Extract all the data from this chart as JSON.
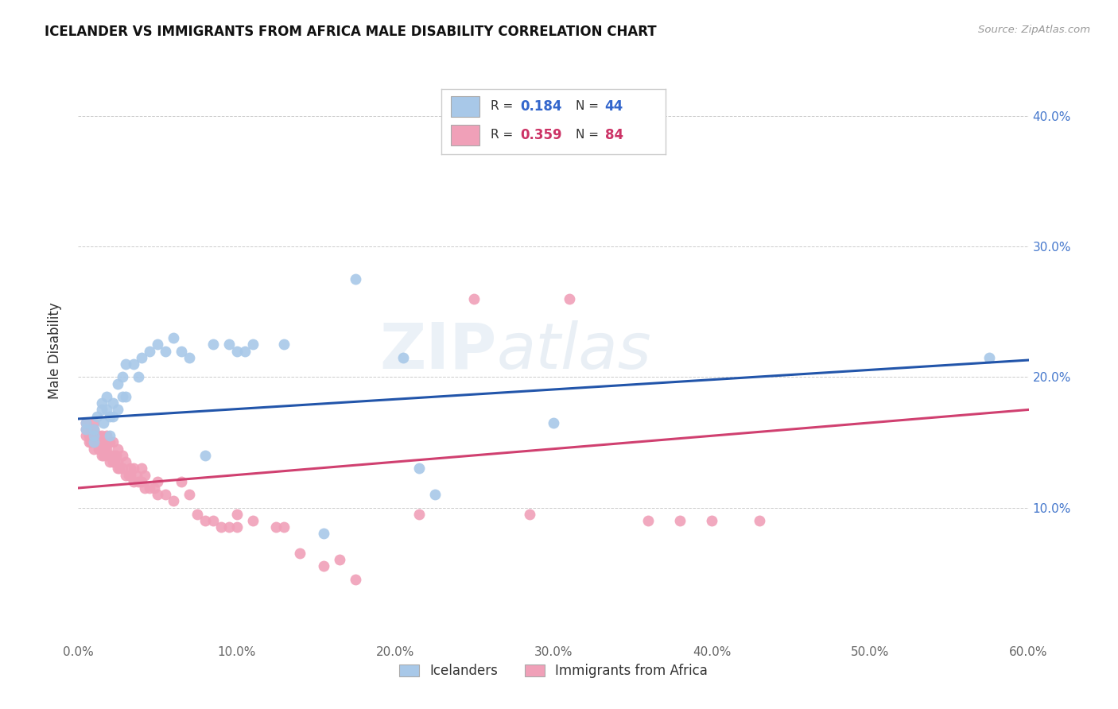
{
  "title": "ICELANDER VS IMMIGRANTS FROM AFRICA MALE DISABILITY CORRELATION CHART",
  "source": "Source: ZipAtlas.com",
  "ylabel": "Male Disability",
  "xlabel": "",
  "bg_color": "#ffffff",
  "grid_color": "#cccccc",
  "watermark_zip": "ZIP",
  "watermark_atlas": "atlas",
  "xlim": [
    0.0,
    0.6
  ],
  "ylim": [
    0.0,
    0.44
  ],
  "xticks": [
    0.0,
    0.1,
    0.2,
    0.3,
    0.4,
    0.5,
    0.6
  ],
  "yticks": [
    0.0,
    0.1,
    0.2,
    0.3,
    0.4
  ],
  "xtick_labels": [
    "0.0%",
    "10.0%",
    "20.0%",
    "30.0%",
    "40.0%",
    "50.0%",
    "60.0%"
  ],
  "ytick_labels_right": [
    "",
    "10.0%",
    "20.0%",
    "30.0%",
    "40.0%"
  ],
  "blue_color": "#a8c8e8",
  "blue_line_color": "#2255aa",
  "pink_color": "#f0a0b8",
  "pink_line_color": "#d04070",
  "blue_scatter_x": [
    0.005,
    0.005,
    0.01,
    0.01,
    0.01,
    0.012,
    0.015,
    0.015,
    0.016,
    0.018,
    0.018,
    0.02,
    0.02,
    0.022,
    0.022,
    0.025,
    0.025,
    0.028,
    0.028,
    0.03,
    0.03,
    0.035,
    0.038,
    0.04,
    0.045,
    0.05,
    0.055,
    0.06,
    0.065,
    0.07,
    0.08,
    0.085,
    0.095,
    0.1,
    0.105,
    0.11,
    0.13,
    0.155,
    0.175,
    0.205,
    0.215,
    0.225,
    0.3,
    0.575
  ],
  "blue_scatter_y": [
    0.16,
    0.165,
    0.15,
    0.155,
    0.16,
    0.17,
    0.175,
    0.18,
    0.165,
    0.175,
    0.185,
    0.155,
    0.17,
    0.17,
    0.18,
    0.175,
    0.195,
    0.185,
    0.2,
    0.185,
    0.21,
    0.21,
    0.2,
    0.215,
    0.22,
    0.225,
    0.22,
    0.23,
    0.22,
    0.215,
    0.14,
    0.225,
    0.225,
    0.22,
    0.22,
    0.225,
    0.225,
    0.08,
    0.275,
    0.215,
    0.13,
    0.11,
    0.165,
    0.215
  ],
  "pink_scatter_x": [
    0.005,
    0.005,
    0.005,
    0.007,
    0.007,
    0.008,
    0.008,
    0.01,
    0.01,
    0.01,
    0.01,
    0.01,
    0.012,
    0.012,
    0.013,
    0.013,
    0.014,
    0.015,
    0.015,
    0.015,
    0.015,
    0.016,
    0.016,
    0.017,
    0.018,
    0.018,
    0.018,
    0.02,
    0.02,
    0.02,
    0.022,
    0.022,
    0.022,
    0.023,
    0.024,
    0.025,
    0.025,
    0.025,
    0.026,
    0.028,
    0.028,
    0.03,
    0.03,
    0.032,
    0.033,
    0.033,
    0.035,
    0.035,
    0.037,
    0.038,
    0.04,
    0.04,
    0.042,
    0.042,
    0.045,
    0.048,
    0.05,
    0.05,
    0.055,
    0.06,
    0.065,
    0.07,
    0.075,
    0.08,
    0.085,
    0.09,
    0.095,
    0.1,
    0.1,
    0.11,
    0.125,
    0.13,
    0.14,
    0.155,
    0.165,
    0.175,
    0.215,
    0.25,
    0.285,
    0.31,
    0.36,
    0.38,
    0.4,
    0.43
  ],
  "pink_scatter_y": [
    0.155,
    0.16,
    0.165,
    0.15,
    0.155,
    0.15,
    0.16,
    0.145,
    0.15,
    0.155,
    0.16,
    0.165,
    0.15,
    0.155,
    0.145,
    0.155,
    0.145,
    0.14,
    0.145,
    0.15,
    0.155,
    0.14,
    0.15,
    0.145,
    0.14,
    0.145,
    0.155,
    0.135,
    0.14,
    0.15,
    0.135,
    0.14,
    0.15,
    0.135,
    0.14,
    0.13,
    0.135,
    0.145,
    0.13,
    0.13,
    0.14,
    0.125,
    0.135,
    0.125,
    0.125,
    0.13,
    0.12,
    0.13,
    0.125,
    0.12,
    0.12,
    0.13,
    0.115,
    0.125,
    0.115,
    0.115,
    0.11,
    0.12,
    0.11,
    0.105,
    0.12,
    0.11,
    0.095,
    0.09,
    0.09,
    0.085,
    0.085,
    0.085,
    0.095,
    0.09,
    0.085,
    0.085,
    0.065,
    0.055,
    0.06,
    0.045,
    0.095,
    0.26,
    0.095,
    0.26,
    0.09,
    0.09,
    0.09,
    0.09
  ]
}
